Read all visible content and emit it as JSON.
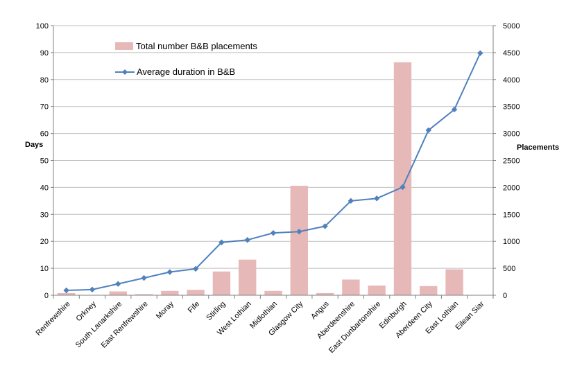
{
  "chart_data": {
    "type": "bar",
    "categories": [
      "Renfrewshire",
      "Orkney",
      "South Lanarkshire",
      "East Renfrewshire",
      "Moray",
      "Fife",
      "Stirling",
      "West Lothian",
      "Midlothian",
      "Glasgow City",
      "Angus",
      "Aberdeenshire",
      "East Dunbartonshire",
      "Edinburgh",
      "Aberdeen City",
      "East Lothian",
      "Eilean Siar"
    ],
    "series": [
      {
        "name": "Total number B&B placements",
        "type": "bar",
        "axis": "right",
        "color": "#e6b8b7",
        "values": [
          40,
          0,
          70,
          20,
          80,
          100,
          440,
          660,
          80,
          2030,
          40,
          290,
          180,
          4320,
          170,
          480,
          0
        ]
      },
      {
        "name": "Average duration in B&B",
        "type": "line",
        "axis": "left",
        "color": "#4f81bd",
        "values": [
          1.8,
          2.1,
          4.2,
          6.4,
          8.6,
          9.8,
          19.6,
          20.5,
          23.1,
          23.6,
          25.6,
          35.0,
          35.9,
          40.1,
          61.2,
          68.9,
          89.8
        ]
      }
    ],
    "ylabel": "Days",
    "y2label": "Placements",
    "ylim": [
      0,
      100
    ],
    "y2lim": [
      0,
      5000
    ],
    "yticks": [
      0,
      10,
      20,
      30,
      40,
      50,
      60,
      70,
      80,
      90,
      100
    ],
    "y2ticks": [
      0,
      500,
      1000,
      1500,
      2000,
      2500,
      3000,
      3500,
      4000,
      4500,
      5000
    ],
    "grid": true,
    "legend_position": "top-left"
  }
}
